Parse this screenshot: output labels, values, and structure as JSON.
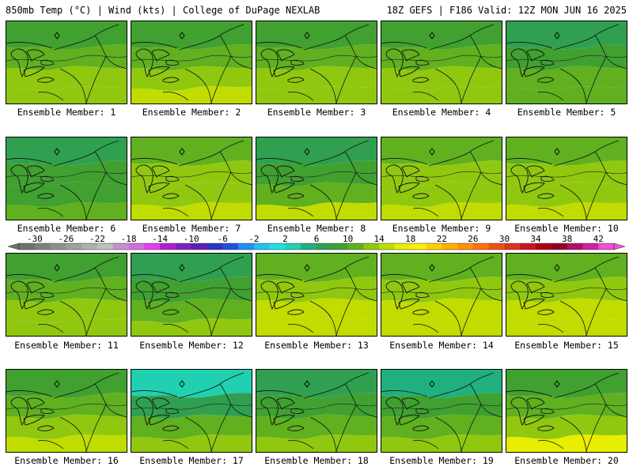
{
  "header": {
    "left": "850mb Temp (°C) | Wind (kts) | College of DuPage NEXLAB",
    "right": "18Z GEFS | F186 Valid: 12Z MON JUN 16 2025"
  },
  "panel_label_prefix": "Ensemble Member:",
  "members": [
    {
      "id": 1,
      "temps": [
        8,
        10,
        12,
        13
      ]
    },
    {
      "id": 2,
      "temps": [
        8,
        10,
        13,
        15
      ]
    },
    {
      "id": 3,
      "temps": [
        9,
        11,
        12,
        13
      ]
    },
    {
      "id": 4,
      "temps": [
        8,
        10,
        12,
        13
      ]
    },
    {
      "id": 5,
      "temps": [
        7,
        8,
        10,
        11
      ]
    },
    {
      "id": 6,
      "temps": [
        7,
        8,
        9,
        10
      ]
    },
    {
      "id": 7,
      "temps": [
        10,
        12,
        13,
        14
      ]
    },
    {
      "id": 8,
      "temps": [
        6,
        8,
        11,
        14
      ]
    },
    {
      "id": 9,
      "temps": [
        10,
        12,
        13,
        15
      ]
    },
    {
      "id": 10,
      "temps": [
        11,
        12,
        13,
        14
      ]
    },
    {
      "id": 11,
      "temps": [
        8,
        10,
        12,
        13
      ]
    },
    {
      "id": 12,
      "temps": [
        7,
        9,
        11,
        13
      ]
    },
    {
      "id": 13,
      "temps": [
        10,
        12,
        14,
        15
      ]
    },
    {
      "id": 14,
      "temps": [
        10,
        12,
        14,
        15
      ]
    },
    {
      "id": 15,
      "temps": [
        11,
        13,
        14,
        15
      ]
    },
    {
      "id": 16,
      "temps": [
        8,
        10,
        12,
        14
      ]
    },
    {
      "id": 17,
      "temps": [
        3,
        6,
        10,
        13
      ]
    },
    {
      "id": 18,
      "temps": [
        6,
        8,
        11,
        13
      ]
    },
    {
      "id": 19,
      "temps": [
        5,
        8,
        11,
        13
      ]
    },
    {
      "id": 20,
      "temps": [
        9,
        11,
        13,
        16
      ]
    }
  ],
  "colorbar": {
    "labels": [
      "-30",
      "-26",
      "-22",
      "-18",
      "-14",
      "-10",
      "-6",
      "-2",
      "2",
      "6",
      "10",
      "14",
      "18",
      "22",
      "26",
      "30",
      "34",
      "38",
      "42"
    ],
    "min": -32,
    "max": 44,
    "step": 2,
    "colors": [
      "#707070",
      "#808080",
      "#909090",
      "#a0a0a0",
      "#b0b0b0",
      "#c0c0c0",
      "#c890c8",
      "#d070e0",
      "#e040f0",
      "#b020d0",
      "#8020c0",
      "#6020b0",
      "#3030c0",
      "#2050e0",
      "#2090f0",
      "#20c0f0",
      "#20e0e0",
      "#20d0b0",
      "#20b080",
      "#30a050",
      "#40a030",
      "#60b020",
      "#90c810",
      "#c0dc00",
      "#e8ee00",
      "#ffee00",
      "#ffd000",
      "#ffb000",
      "#ff9000",
      "#ff7010",
      "#f05010",
      "#e03020",
      "#d01020",
      "#b00010",
      "#900020",
      "#b01060",
      "#d020a0",
      "#f050d0"
    ]
  }
}
